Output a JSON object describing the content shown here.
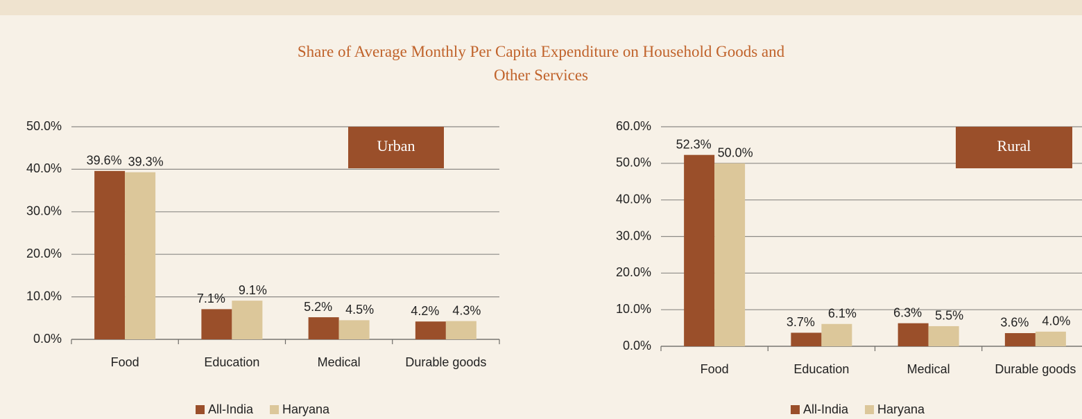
{
  "title": "Share of Average Monthly Per Capita Expenditure on Household Goods and Other Services",
  "chart_data": [
    {
      "type": "bar",
      "label": "Urban",
      "categories": [
        "Food",
        "Education",
        "Medical",
        "Durable goods"
      ],
      "series": [
        {
          "name": "All-India",
          "color": "#9a4f2a",
          "values": [
            39.6,
            7.1,
            5.2,
            4.2
          ],
          "value_labels": [
            "39.6%",
            "7.1%",
            "5.2%",
            "4.2%"
          ]
        },
        {
          "name": "Haryana",
          "color": "#dcc79a",
          "values": [
            39.3,
            9.1,
            4.5,
            4.3
          ],
          "value_labels": [
            "39.3%",
            "9.1%",
            "4.5%",
            "4.3%"
          ]
        }
      ],
      "ylim": [
        0,
        50
      ],
      "yticks": [
        {
          "value": 0,
          "label": "0.0%"
        },
        {
          "value": 10,
          "label": "10.0%"
        },
        {
          "value": 20,
          "label": "20.0%"
        },
        {
          "value": 30,
          "label": "30.0%"
        },
        {
          "value": 40,
          "label": "40.0%"
        },
        {
          "value": 50,
          "label": "50.0%"
        }
      ],
      "grid": true,
      "legend": "bottom"
    },
    {
      "type": "bar",
      "label": "Rural",
      "categories": [
        "Food",
        "Education",
        "Medical",
        "Durable goods"
      ],
      "series": [
        {
          "name": "All-India",
          "color": "#9a4f2a",
          "values": [
            52.3,
            3.7,
            6.3,
            3.6
          ],
          "value_labels": [
            "52.3%",
            "3.7%",
            "6.3%",
            "3.6%"
          ]
        },
        {
          "name": "Haryana",
          "color": "#dcc79a",
          "values": [
            50.0,
            6.1,
            5.5,
            4.0
          ],
          "value_labels": [
            "50.0%",
            "6.1%",
            "5.5%",
            "4.0%"
          ]
        }
      ],
      "ylim": [
        0,
        60
      ],
      "yticks": [
        {
          "value": 0,
          "label": "0.0%"
        },
        {
          "value": 10,
          "label": "10.0%"
        },
        {
          "value": 20,
          "label": "20.0%"
        },
        {
          "value": 30,
          "label": "30.0%"
        },
        {
          "value": 40,
          "label": "40.0%"
        },
        {
          "value": 50,
          "label": "50.0%"
        },
        {
          "value": 60,
          "label": "60.0%"
        }
      ],
      "grid": true,
      "legend": "bottom"
    }
  ]
}
